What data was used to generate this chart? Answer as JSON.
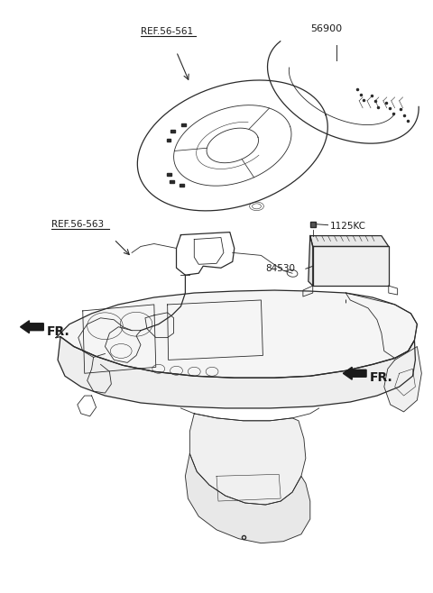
{
  "bg_color": "#ffffff",
  "fig_width": 4.8,
  "fig_height": 6.58,
  "dpi": 100,
  "line_color": "#2a2a2a",
  "text_color": "#1a1a1a",
  "labels": {
    "ref56561": "REF.56-561",
    "ref56563": "REF.56-563",
    "part56900": "56900",
    "part1125KC": "1125KC",
    "part84530": "84530",
    "fr_left": "FR.",
    "fr_right": "FR."
  }
}
